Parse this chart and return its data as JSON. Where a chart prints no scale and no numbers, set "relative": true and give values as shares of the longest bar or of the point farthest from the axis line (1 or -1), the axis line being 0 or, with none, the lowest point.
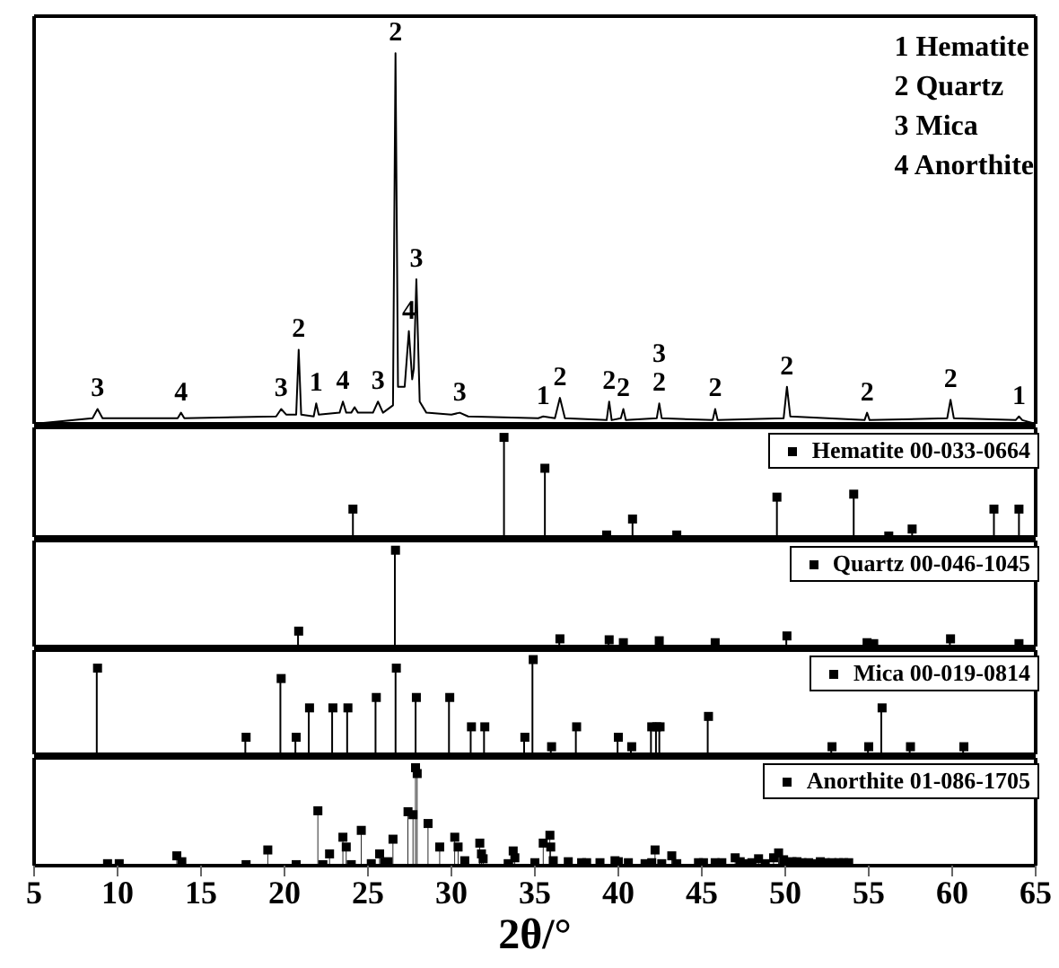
{
  "chart_data": [
    {
      "type": "line",
      "relative": true,
      "xlim": [
        5,
        65
      ],
      "tick_labels": false,
      "x": [
        5,
        8.5,
        8.8,
        9.1,
        13.6,
        13.8,
        14.0,
        19.5,
        19.8,
        20.1,
        20.7,
        20.85,
        21.0,
        21.75,
        21.9,
        22.05,
        23.3,
        23.5,
        23.7,
        24.0,
        24.2,
        24.4,
        25.3,
        25.6,
        25.9,
        26.5,
        26.65,
        26.8,
        27.2,
        27.45,
        27.65,
        27.75,
        27.9,
        28.1,
        28.5,
        30.0,
        30.5,
        31.0,
        35.2,
        35.5,
        36.2,
        36.5,
        36.8,
        39.3,
        39.45,
        39.6,
        40.15,
        40.3,
        40.45,
        42.3,
        42.45,
        42.6,
        45.65,
        45.8,
        45.95,
        49.9,
        50.1,
        50.3,
        54.75,
        54.9,
        55.05,
        59.7,
        59.9,
        60.1,
        63.8,
        64.0,
        64.2,
        65
      ],
      "series": [
        {
          "color": "#000000",
          "values": [
            0,
            0.015,
            0.04,
            0.015,
            0.015,
            0.03,
            0.015,
            0.02,
            0.04,
            0.025,
            0.025,
            0.2,
            0.025,
            0.02,
            0.055,
            0.025,
            0.03,
            0.06,
            0.03,
            0.03,
            0.045,
            0.03,
            0.03,
            0.06,
            0.03,
            0.05,
            1,
            0.1,
            0.1,
            0.25,
            0.12,
            0.15,
            0.39,
            0.06,
            0.03,
            0.025,
            0.03,
            0.02,
            0.015,
            0.02,
            0.015,
            0.07,
            0.015,
            0.01,
            0.06,
            0.01,
            0.015,
            0.04,
            0.01,
            0.015,
            0.055,
            0.015,
            0.01,
            0.04,
            0.01,
            0.015,
            0.1,
            0.02,
            0.01,
            0.03,
            0.01,
            0.015,
            0.065,
            0.015,
            0.01,
            0.02,
            0.01,
            0
          ]
        }
      ],
      "annotations": [
        "1 Hematite",
        "2 Quartz",
        "3 Mica",
        "4 Anorthite",
        {
          "text": "3",
          "x": 8.8,
          "y": 0.04
        },
        {
          "text": "4",
          "x": 13.8,
          "y": 0.03
        },
        {
          "text": "3",
          "x": 19.8,
          "y": 0.04
        },
        {
          "text": "2",
          "x": 20.85,
          "y": 0.2
        },
        {
          "text": "1",
          "x": 21.9,
          "y": 0.055
        },
        {
          "text": "4",
          "x": 23.5,
          "y": 0.06
        },
        {
          "text": "3",
          "x": 25.6,
          "y": 0.06
        },
        {
          "text": "2",
          "x": 26.65,
          "y": 1
        },
        {
          "text": "4",
          "x": 27.45,
          "y": 0.25
        },
        {
          "text": "3",
          "x": 27.9,
          "y": 0.39
        },
        {
          "text": "3",
          "x": 30.5,
          "y": 0.03
        },
        {
          "text": "1",
          "x": 35.5,
          "y": 0.02
        },
        {
          "text": "2",
          "x": 36.5,
          "y": 0.07
        },
        {
          "text": "2",
          "x": 39.45,
          "y": 0.06
        },
        {
          "text": "2",
          "x": 40.3,
          "y": 0.04
        },
        {
          "text": "2",
          "x": 42.45,
          "y": 0.055
        },
        {
          "text": "3",
          "x": 42.45,
          "y": 0.055
        },
        {
          "text": "2",
          "x": 45.8,
          "y": 0.04
        },
        {
          "text": "2",
          "x": 50.1,
          "y": 0.1
        },
        {
          "text": "2",
          "x": 54.9,
          "y": 0.03
        },
        {
          "text": "2",
          "x": 59.9,
          "y": 0.065
        },
        {
          "text": "1",
          "x": 64.0,
          "y": 0.02
        }
      ]
    },
    {
      "type": "lollipop",
      "relative": true,
      "xlim": [
        5,
        65
      ],
      "tick_labels": false,
      "marker": "square",
      "legend": "top right",
      "x": [
        24.1,
        33.15,
        35.6,
        39.3,
        40.85,
        43.5,
        49.5,
        54.1,
        56.2,
        57.6,
        62.5,
        64.0
      ],
      "series": [
        {
          "name": "Hematite 00-033-0664",
          "color": "#000000",
          "values": [
            0.28,
            1,
            0.69,
            0.02,
            0.18,
            0.02,
            0.4,
            0.43,
            0.01,
            0.08,
            0.28,
            0.28
          ]
        }
      ]
    },
    {
      "type": "lollipop",
      "relative": true,
      "xlim": [
        5,
        65
      ],
      "tick_labels": false,
      "marker": "square",
      "legend": "top right",
      "x": [
        20.85,
        26.65,
        36.5,
        39.45,
        40.3,
        42.45,
        45.8,
        50.1,
        54.9,
        55.3,
        59.9,
        64.0
      ],
      "series": [
        {
          "name": "Quartz 00-046-1045",
          "color": "#000000",
          "values": [
            0.16,
            1,
            0.08,
            0.07,
            0.04,
            0.06,
            0.04,
            0.11,
            0.04,
            0.03,
            0.08,
            0.03
          ]
        }
      ]
    },
    {
      "type": "lollipop",
      "relative": true,
      "xlim": [
        5,
        65
      ],
      "tick_labels": false,
      "marker": "square",
      "legend": "top right",
      "x": [
        8.8,
        17.7,
        19.8,
        20.7,
        21.5,
        22.9,
        23.8,
        25.5,
        26.7,
        27.9,
        29.9,
        31.2,
        32.0,
        34.4,
        34.9,
        36.0,
        37.5,
        40.0,
        40.8,
        42.0,
        42.3,
        42.5,
        45.4,
        52.8,
        55.0,
        55.8,
        57.5,
        60.7
      ],
      "series": [
        {
          "name": "Mica 00-019-0814",
          "color": "#000000",
          "values": [
            0.91,
            0.18,
            0.8,
            0.18,
            0.49,
            0.49,
            0.49,
            0.6,
            0.91,
            0.6,
            0.6,
            0.29,
            0.29,
            0.18,
            1,
            0.08,
            0.29,
            0.18,
            0.08,
            0.29,
            0.29,
            0.29,
            0.4,
            0.08,
            0.08,
            0.49,
            0.08,
            0.08
          ]
        }
      ]
    },
    {
      "type": "lollipop",
      "relative": true,
      "xlim": [
        5,
        65
      ],
      "xticks": [
        5,
        10,
        15,
        20,
        25,
        30,
        35,
        40,
        45,
        50,
        55,
        60,
        65
      ],
      "tick_labels": "x",
      "xlabel": "2θ/°",
      "marker": "square",
      "legend": "top right",
      "x": [
        9.4,
        10.1,
        13.55,
        13.85,
        17.7,
        19.0,
        20.7,
        22.0,
        22.3,
        22.7,
        23.5,
        23.7,
        24.0,
        24.6,
        25.2,
        25.7,
        26.0,
        26.2,
        26.5,
        27.4,
        27.7,
        27.85,
        27.95,
        28.6,
        29.3,
        30.2,
        30.4,
        30.8,
        31.7,
        31.8,
        31.9,
        33.4,
        33.7,
        33.8,
        35.0,
        35.5,
        35.9,
        35.95,
        36.1,
        37.0,
        37.8,
        38.1,
        38.9,
        39.8,
        40.0,
        40.6,
        41.6,
        42.0,
        42.2,
        42.6,
        43.2,
        43.5,
        44.8,
        45.1,
        45.8,
        46.2,
        47.0,
        47.3,
        47.6,
        48.0,
        48.4,
        48.8,
        49.3,
        49.6,
        49.9,
        50.4,
        50.7,
        51.0,
        51.4,
        51.8,
        52.1,
        52.4,
        52.8,
        53.2,
        53.5,
        53.8
      ],
      "series": [
        {
          "name": "Anorthite 01-086-1705",
          "color": "#000000",
          "values": [
            0.02,
            0.02,
            0.1,
            0.04,
            0.01,
            0.16,
            0.01,
            0.56,
            0.01,
            0.12,
            0.29,
            0.19,
            0.01,
            0.36,
            0.02,
            0.12,
            0.03,
            0.04,
            0.27,
            0.55,
            0.52,
            1,
            0.94,
            0.43,
            0.19,
            0.29,
            0.19,
            0.05,
            0.23,
            0.12,
            0.07,
            0.02,
            0.15,
            0.08,
            0.03,
            0.23,
            0.31,
            0.19,
            0.05,
            0.04,
            0.03,
            0.03,
            0.03,
            0.05,
            0.04,
            0.03,
            0.02,
            0.03,
            0.16,
            0.02,
            0.1,
            0.02,
            0.03,
            0.03,
            0.03,
            0.03,
            0.08,
            0.04,
            0.02,
            0.03,
            0.07,
            0.02,
            0.08,
            0.13,
            0.06,
            0.04,
            0.04,
            0.03,
            0.03,
            0.02,
            0.04,
            0.03,
            0.03,
            0.03,
            0.03,
            0.03
          ]
        }
      ]
    }
  ]
}
